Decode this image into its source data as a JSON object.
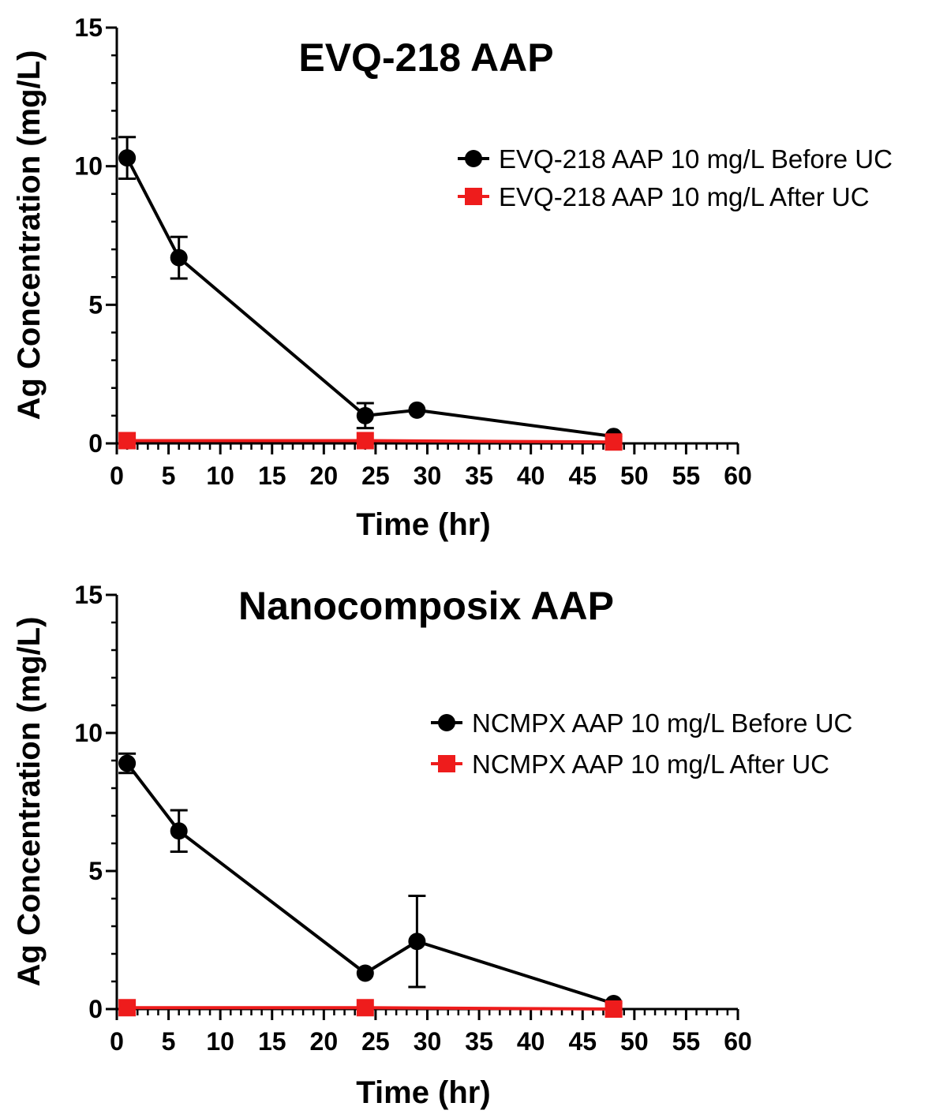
{
  "chart_data": [
    {
      "type": "line",
      "title": "EVQ-218 AAP",
      "xlabel": "Time (hr)",
      "ylabel": "Ag Concentration (mg/L)",
      "xlim": [
        0,
        60
      ],
      "ylim": [
        0,
        15
      ],
      "x_ticks": [
        0,
        5,
        10,
        15,
        20,
        25,
        30,
        35,
        40,
        45,
        50,
        55,
        60
      ],
      "y_ticks": [
        0,
        5,
        10,
        15
      ],
      "legend_position": "right",
      "series": [
        {
          "name": "EVQ-218 AAP 10 mg/L Before UC",
          "color": "#000000",
          "marker": "circle",
          "x": [
            1,
            6,
            24,
            29,
            48
          ],
          "y": [
            10.3,
            6.7,
            1.0,
            1.2,
            0.25
          ],
          "err": [
            0.75,
            0.75,
            0.45,
            0,
            0
          ]
        },
        {
          "name": "EVQ-218 AAP 10 mg/L After UC",
          "color": "#ee1c1c",
          "marker": "square",
          "x": [
            1,
            24,
            48
          ],
          "y": [
            0.1,
            0.1,
            0.05
          ],
          "err": [
            0,
            0,
            0
          ]
        }
      ]
    },
    {
      "type": "line",
      "title": "Nanocomposix AAP",
      "xlabel": "Time (hr)",
      "ylabel": "Ag Concentration (mg/L)",
      "xlim": [
        0,
        60
      ],
      "ylim": [
        0,
        15
      ],
      "x_ticks": [
        0,
        5,
        10,
        15,
        20,
        25,
        30,
        35,
        40,
        45,
        50,
        55,
        60
      ],
      "y_ticks": [
        0,
        5,
        10,
        15
      ],
      "legend_position": "right",
      "series": [
        {
          "name": "NCMPX AAP 10 mg/L Before UC",
          "color": "#000000",
          "marker": "circle",
          "x": [
            1,
            6,
            24,
            29,
            48
          ],
          "y": [
            8.9,
            6.45,
            1.3,
            2.45,
            0.2
          ],
          "err": [
            0.35,
            0.75,
            0,
            1.65,
            0
          ]
        },
        {
          "name": "NCMPX AAP 10 mg/L After UC",
          "color": "#ee1c1c",
          "marker": "square",
          "x": [
            1,
            24,
            48
          ],
          "y": [
            0.05,
            0.05,
            0.0
          ],
          "err": [
            0,
            0,
            0
          ]
        }
      ]
    }
  ]
}
